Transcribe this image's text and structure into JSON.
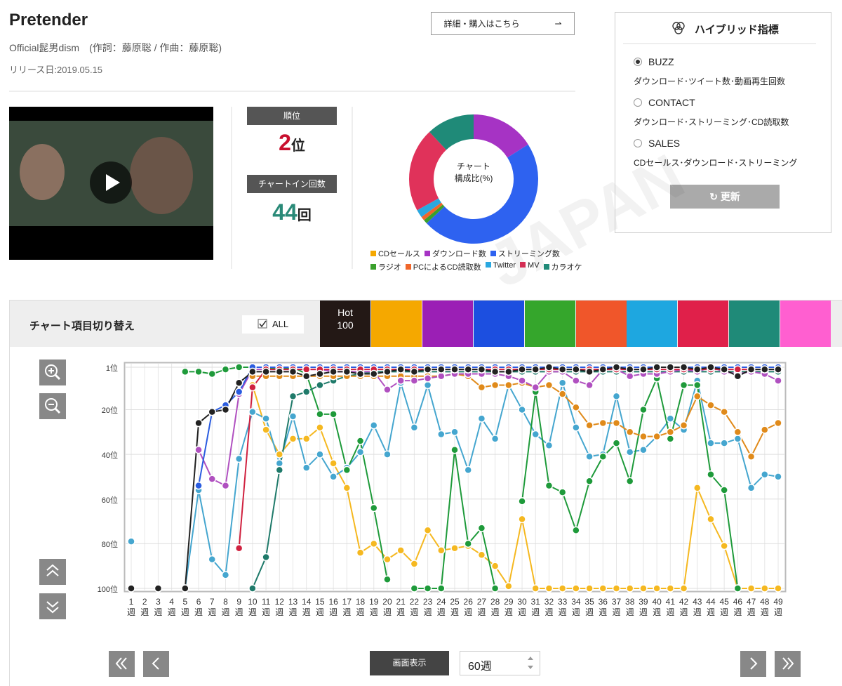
{
  "header": {
    "title": "Pretender",
    "artist": "Official髭男dism　(作詞：藤原聡 / 作曲：藤原聡)",
    "release": "リリース日:2019.05.15",
    "detail_button": "詳細・購入はこちら"
  },
  "rank": {
    "label": "順位",
    "number": "2",
    "unit": "位"
  },
  "chart_in": {
    "label": "チャートイン回数",
    "number": "44",
    "unit": "回"
  },
  "hybrid": {
    "title": "ハイブリッド指標",
    "options": [
      {
        "label": "BUZZ",
        "description": "ダウンロード･ツイート数･動画再生回数",
        "selected": true
      },
      {
        "label": "CONTACT",
        "description": "ダウンロード･ストリーミング･CD読取数",
        "selected": false
      },
      {
        "label": "SALES",
        "description": "CDセールス･ダウンロード･ストリーミング",
        "selected": false
      }
    ],
    "button": "更新"
  },
  "watermark": "JAPAN",
  "toolbar": {
    "title": "チャート項目切り替え",
    "all": "ALL",
    "tabs": [
      {
        "label": "Hot 100",
        "color": "#231815"
      },
      {
        "color": "#f5a800"
      },
      {
        "color": "#9b1fb5"
      },
      {
        "color": "#1c4fe0"
      },
      {
        "color": "#35a62c"
      },
      {
        "color": "#f0562a"
      },
      {
        "color": "#1ea7e0"
      },
      {
        "color": "#e0204a"
      },
      {
        "color": "#1f8a78"
      },
      {
        "color": "#ff5fd0"
      }
    ]
  },
  "display": {
    "label": "画面表示",
    "select": "60週"
  },
  "chart_data": [
    {
      "type": "pie",
      "donut": true,
      "center_label": [
        "チャート",
        "構成比(%)"
      ],
      "categories": [
        "CDセールス",
        "ダウンロード数",
        "ストリーミング数",
        "ラジオ",
        "PCによるCD読取数",
        "Twitter",
        "MV",
        "カラオケ"
      ],
      "values": [
        0,
        16,
        47,
        1,
        1,
        2,
        21,
        12
      ],
      "colors": [
        "#f5a800",
        "#a633c4",
        "#2e62f0",
        "#3aa02c",
        "#f0662a",
        "#2aa8e0",
        "#e0325a",
        "#1f8a78"
      ]
    },
    {
      "type": "line",
      "y_reversed": true,
      "grid": true,
      "ylim": [
        1,
        100
      ],
      "yticks": [
        {
          "value": 1,
          "label": "1位"
        },
        {
          "value": 20,
          "label": "20位"
        },
        {
          "value": 40,
          "label": "40位"
        },
        {
          "value": 60,
          "label": "60位"
        },
        {
          "value": 80,
          "label": "80位"
        },
        {
          "value": 100,
          "label": "100位"
        }
      ],
      "categories": [
        "1週",
        "2週",
        "3週",
        "4週",
        "5週",
        "6週",
        "7週",
        "8週",
        "9週",
        "10週",
        "11週",
        "12週",
        "13週",
        "14週",
        "15週",
        "16週",
        "17週",
        "18週",
        "19週",
        "20週",
        "21週",
        "22週",
        "23週",
        "24週",
        "25週",
        "26週",
        "27週",
        "28週",
        "29週",
        "30週",
        "31週",
        "32週",
        "33週",
        "34週",
        "35週",
        "36週",
        "37週",
        "38週",
        "39週",
        "40週",
        "41週",
        "42週",
        "43週",
        "44週",
        "45週",
        "46週",
        "47週",
        "48週",
        "49週"
      ],
      "series": [
        {
          "color": "#f5b820",
          "values": [
            null,
            null,
            null,
            null,
            null,
            null,
            null,
            null,
            null,
            9,
            29,
            40,
            33,
            33,
            28,
            44,
            55,
            84,
            80,
            87,
            83,
            89,
            74,
            83,
            82,
            81,
            85,
            90,
            99,
            69,
            100,
            100,
            100,
            100,
            100,
            100,
            100,
            100,
            100,
            100,
            100,
            100,
            55,
            69,
            81,
            100,
            100,
            100,
            100
          ]
        },
        {
          "color": "#45a6cf",
          "values": [
            79,
            null,
            null,
            null,
            100,
            56,
            87,
            94,
            42,
            21,
            24,
            44,
            23,
            46,
            40,
            50,
            46,
            39,
            27,
            40,
            8,
            28,
            9,
            31,
            30,
            47,
            24,
            33,
            9,
            20,
            31,
            36,
            8,
            28,
            41,
            40,
            14,
            39,
            38,
            32,
            24,
            29,
            7,
            35,
            35,
            33,
            55,
            49,
            50
          ]
        },
        {
          "color": "#1e9a3a",
          "values": [
            null,
            null,
            null,
            null,
            3,
            3,
            4,
            2,
            1,
            1,
            1,
            2,
            1,
            4,
            22,
            22,
            47,
            34,
            64,
            96,
            null,
            100,
            100,
            100,
            38,
            80,
            73,
            100,
            null,
            61,
            12,
            54,
            57,
            74,
            52,
            41,
            35,
            52,
            20,
            6,
            33,
            9,
            9,
            49,
            56,
            100,
            null,
            null,
            null
          ]
        },
        {
          "color": "#1f7a6a",
          "values": [
            null,
            null,
            null,
            null,
            null,
            null,
            null,
            null,
            null,
            100,
            86,
            47,
            14,
            12,
            9,
            7,
            5,
            4,
            3,
            3,
            3,
            3,
            3,
            3,
            3,
            3,
            3,
            3,
            3,
            3,
            3,
            3,
            3,
            3,
            3,
            3,
            3,
            3,
            3,
            3,
            3,
            3,
            3,
            3,
            3,
            3,
            3,
            3,
            3
          ]
        },
        {
          "color": "#e08a1a",
          "values": [
            null,
            null,
            null,
            null,
            null,
            null,
            null,
            null,
            null,
            5,
            5,
            5,
            5,
            5,
            5,
            5,
            5,
            5,
            5,
            5,
            5,
            5,
            5,
            5,
            4,
            5,
            10,
            9,
            9,
            8,
            10,
            9,
            13,
            19,
            27,
            26,
            26,
            30,
            32,
            32,
            30,
            27,
            14,
            18,
            21,
            30,
            41,
            29,
            26
          ]
        },
        {
          "color": "#b050c0",
          "values": [
            null,
            null,
            null,
            null,
            null,
            38,
            51,
            54,
            13,
            2,
            2,
            2,
            2,
            2,
            2,
            3,
            3,
            3,
            3,
            11,
            7,
            7,
            6,
            5,
            4,
            4,
            4,
            4,
            5,
            7,
            10,
            3,
            3,
            7,
            9,
            2,
            2,
            5,
            4,
            4,
            3,
            2,
            3,
            1,
            3,
            4,
            3,
            4,
            7
          ]
        },
        {
          "color": "#2a5ce0",
          "values": [
            null,
            null,
            null,
            null,
            null,
            54,
            21,
            18,
            12,
            1,
            1,
            1,
            1,
            1,
            1,
            1,
            1,
            1,
            1,
            1,
            1,
            1,
            1,
            1,
            1,
            1,
            1,
            1,
            1,
            1,
            1,
            1,
            1,
            1,
            1,
            1,
            1,
            1,
            1,
            1,
            1,
            1,
            1,
            1,
            1,
            1,
            1,
            1,
            1
          ]
        },
        {
          "color": "#d0213f",
          "values": [
            null,
            null,
            null,
            null,
            null,
            null,
            null,
            null,
            82,
            10,
            2,
            2,
            2,
            2,
            2,
            2,
            2,
            2,
            2,
            2,
            2,
            2,
            2,
            2,
            2,
            2,
            2,
            2,
            2,
            2,
            2,
            2,
            2,
            2,
            2,
            2,
            2,
            2,
            2,
            2,
            2,
            2,
            2,
            2,
            2,
            2,
            2,
            2,
            2
          ]
        },
        {
          "color": "#222222",
          "values": [
            100,
            null,
            100,
            null,
            100,
            26,
            21,
            20,
            8,
            3,
            3,
            3,
            3,
            5,
            4,
            3,
            3,
            4,
            4,
            3,
            2,
            3,
            2,
            2,
            2,
            2,
            2,
            3,
            3,
            2,
            2,
            1,
            2,
            2,
            3,
            2,
            1,
            2,
            2,
            1,
            1,
            1,
            2,
            1,
            2,
            5,
            2,
            2,
            2
          ]
        }
      ]
    }
  ]
}
